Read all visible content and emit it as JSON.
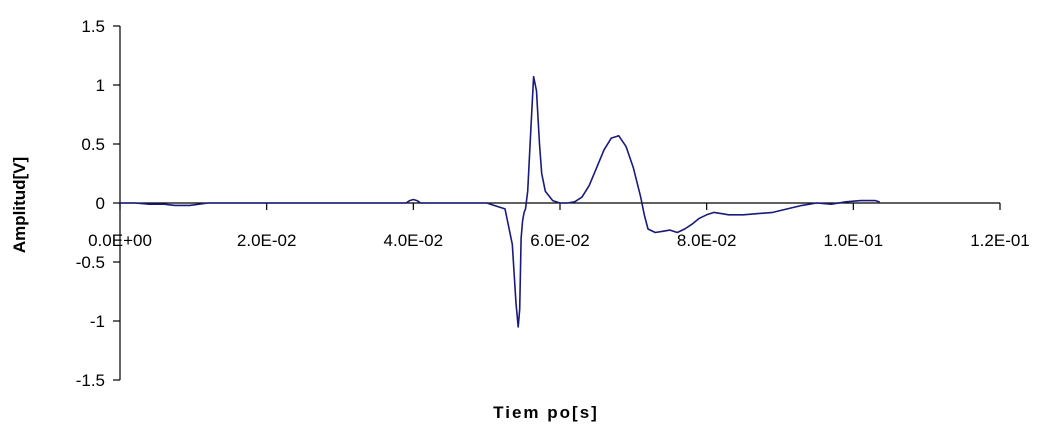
{
  "chart_data": {
    "type": "line",
    "title": "",
    "xlabel": "Tiem po[s]",
    "ylabel": "Amplitud[V]",
    "xlim": [
      0,
      0.12
    ],
    "ylim": [
      -1.5,
      1.5
    ],
    "x_ticks": [
      {
        "value": 0.0,
        "label": "0.0E+00"
      },
      {
        "value": 0.02,
        "label": "2.0E-02"
      },
      {
        "value": 0.04,
        "label": "4.0E-02"
      },
      {
        "value": 0.06,
        "label": "6.0E-02"
      },
      {
        "value": 0.08,
        "label": "8.0E-02"
      },
      {
        "value": 0.1,
        "label": "1.0E-01"
      },
      {
        "value": 0.12,
        "label": "1.2E-01"
      }
    ],
    "y_ticks": [
      {
        "value": 1.5,
        "label": "1.5"
      },
      {
        "value": 1.0,
        "label": "1"
      },
      {
        "value": 0.5,
        "label": "0.5"
      },
      {
        "value": 0.0,
        "label": "0"
      },
      {
        "value": -0.5,
        "label": "-0.5"
      },
      {
        "value": -1.0,
        "label": "-1"
      },
      {
        "value": -1.5,
        "label": "-1.5"
      }
    ],
    "grid": false,
    "legend": "none",
    "series": [
      {
        "color": "#1a1a7a",
        "x": [
          0,
          0.002,
          0.004,
          0.006,
          0.0075,
          0.0085,
          0.0095,
          0.012,
          0.02,
          0.03,
          0.039,
          0.0395,
          0.04,
          0.0405,
          0.041,
          0.045,
          0.05,
          0.051,
          0.0525,
          0.0535,
          0.054,
          0.0543,
          0.0545,
          0.0547,
          0.0549,
          0.0551,
          0.0553,
          0.0556,
          0.056,
          0.0564,
          0.0568,
          0.0572,
          0.0575,
          0.058,
          0.059,
          0.06,
          0.061,
          0.062,
          0.063,
          0.064,
          0.065,
          0.066,
          0.067,
          0.068,
          0.069,
          0.07,
          0.071,
          0.0715,
          0.072,
          0.073,
          0.074,
          0.075,
          0.076,
          0.077,
          0.078,
          0.079,
          0.08,
          0.081,
          0.082,
          0.083,
          0.085,
          0.087,
          0.089,
          0.091,
          0.093,
          0.095,
          0.097,
          0.099,
          0.101,
          0.103,
          0.1035,
          0.1036
        ],
        "y": [
          0.0,
          0.0,
          -0.01,
          -0.01,
          -0.02,
          -0.02,
          -0.02,
          0.0,
          0.0,
          0.0,
          0.0,
          0.02,
          0.03,
          0.02,
          0.0,
          0.0,
          0.0,
          -0.02,
          -0.05,
          -0.35,
          -0.85,
          -1.05,
          -0.9,
          -0.3,
          -0.15,
          -0.08,
          -0.05,
          0.1,
          0.6,
          1.07,
          0.95,
          0.5,
          0.25,
          0.1,
          0.02,
          0.0,
          0.0,
          0.01,
          0.05,
          0.15,
          0.3,
          0.45,
          0.55,
          0.57,
          0.48,
          0.3,
          0.05,
          -0.1,
          -0.22,
          -0.25,
          -0.24,
          -0.23,
          -0.25,
          -0.22,
          -0.18,
          -0.13,
          -0.1,
          -0.08,
          -0.09,
          -0.1,
          -0.1,
          -0.09,
          -0.08,
          -0.05,
          -0.02,
          0.0,
          -0.01,
          0.01,
          0.02,
          0.02,
          0.01,
          0.0
        ]
      }
    ]
  }
}
